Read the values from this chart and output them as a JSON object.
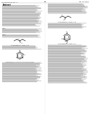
{
  "background_color": "#ffffff",
  "page_color": "#ffffff",
  "text_color": "#333333",
  "border_color": "#aaaaaa",
  "title_top_left": "US 2019/0394745 A1",
  "title_top_right": "Jan. 21, 2019",
  "page_number": "20"
}
